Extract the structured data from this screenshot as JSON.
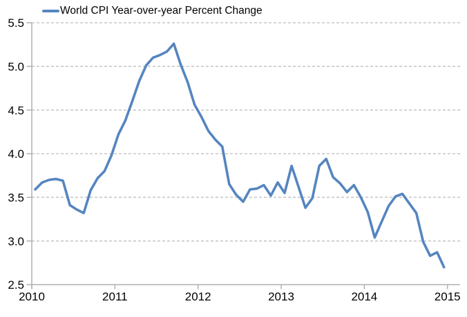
{
  "legend": {
    "label": "World CPI Year-over-year Percent Change"
  },
  "chart_data": {
    "type": "line",
    "title": "World CPI Year-over-year Percent Change",
    "frequency": "monthly",
    "x_start": "2010-01",
    "x_end": "2014-12",
    "series": [
      {
        "name": "World CPI Year-over-year Percent Change",
        "color": "#5585c0",
        "values": [
          3.59,
          3.67,
          3.7,
          3.71,
          3.69,
          3.41,
          3.36,
          3.32,
          3.58,
          3.72,
          3.8,
          3.98,
          4.22,
          4.38,
          4.6,
          4.83,
          5.01,
          5.1,
          5.13,
          5.17,
          5.26,
          5.02,
          4.82,
          4.56,
          4.42,
          4.26,
          4.16,
          4.08,
          3.65,
          3.53,
          3.45,
          3.59,
          3.6,
          3.64,
          3.52,
          3.67,
          3.55,
          3.86,
          3.62,
          3.38,
          3.49,
          3.86,
          3.94,
          3.73,
          3.66,
          3.56,
          3.64,
          3.5,
          3.33,
          3.04,
          3.22,
          3.4,
          3.51,
          3.54,
          3.43,
          3.32,
          2.99,
          2.83,
          2.87,
          2.7
        ]
      }
    ],
    "x_tick_labels": [
      "2010",
      "2011",
      "2012",
      "2013",
      "2014",
      "2015"
    ],
    "y_tick_labels": [
      "2.5",
      "3.0",
      "3.5",
      "4.0",
      "4.5",
      "5.0",
      "5.5"
    ],
    "ylim": [
      2.5,
      5.5
    ],
    "xlim_years": [
      2010,
      2015.15
    ],
    "grid": "horizontal-dashed",
    "legend_position": "top-left"
  },
  "colors": {
    "line": "#5585c0",
    "grid": "#c7c7c7",
    "axis": "#b0b0b0",
    "text": "#000000",
    "background": "#ffffff"
  }
}
